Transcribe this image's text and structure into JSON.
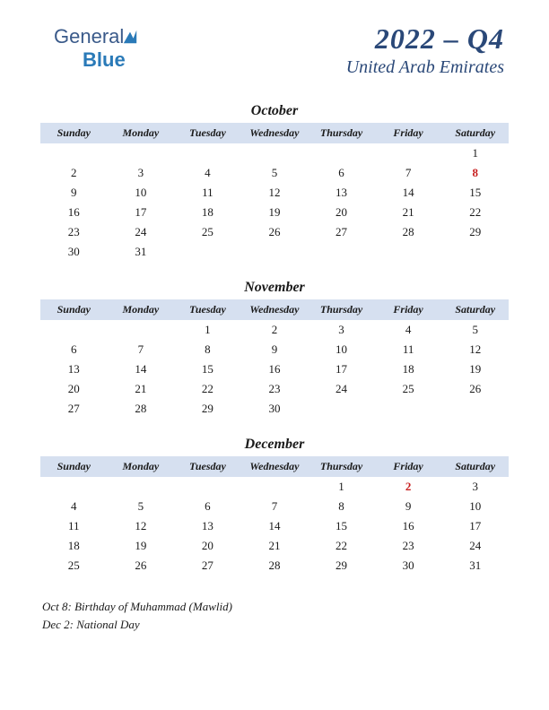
{
  "logo": {
    "part1": "General",
    "part2": "Blue"
  },
  "header": {
    "title": "2022 – Q4",
    "subtitle": "United Arab Emirates"
  },
  "dayNames": [
    "Sunday",
    "Monday",
    "Tuesday",
    "Wednesday",
    "Thursday",
    "Friday",
    "Saturday"
  ],
  "colors": {
    "header_bg": "#d6e0f0",
    "title_color": "#2a4878",
    "text_color": "#1a1a1a",
    "holiday_color": "#c82020",
    "page_bg": "#ffffff"
  },
  "months": [
    {
      "name": "October",
      "weeks": [
        [
          "",
          "",
          "",
          "",
          "",
          "",
          "1"
        ],
        [
          "2",
          "3",
          "4",
          "5",
          "6",
          "7",
          "8"
        ],
        [
          "9",
          "10",
          "11",
          "12",
          "13",
          "14",
          "15"
        ],
        [
          "16",
          "17",
          "18",
          "19",
          "20",
          "21",
          "22"
        ],
        [
          "23",
          "24",
          "25",
          "26",
          "27",
          "28",
          "29"
        ],
        [
          "30",
          "31",
          "",
          "",
          "",
          "",
          ""
        ]
      ],
      "holidays": [
        "8"
      ]
    },
    {
      "name": "November",
      "weeks": [
        [
          "",
          "",
          "1",
          "2",
          "3",
          "4",
          "5"
        ],
        [
          "6",
          "7",
          "8",
          "9",
          "10",
          "11",
          "12"
        ],
        [
          "13",
          "14",
          "15",
          "16",
          "17",
          "18",
          "19"
        ],
        [
          "20",
          "21",
          "22",
          "23",
          "24",
          "25",
          "26"
        ],
        [
          "27",
          "28",
          "29",
          "30",
          "",
          "",
          ""
        ]
      ],
      "holidays": []
    },
    {
      "name": "December",
      "weeks": [
        [
          "",
          "",
          "",
          "",
          "1",
          "2",
          "3"
        ],
        [
          "4",
          "5",
          "6",
          "7",
          "8",
          "9",
          "10"
        ],
        [
          "11",
          "12",
          "13",
          "14",
          "15",
          "16",
          "17"
        ],
        [
          "18",
          "19",
          "20",
          "21",
          "22",
          "23",
          "24"
        ],
        [
          "25",
          "26",
          "27",
          "28",
          "29",
          "30",
          "31"
        ]
      ],
      "holidays": [
        "2"
      ]
    }
  ],
  "footnotes": [
    "Oct 8: Birthday of Muhammad (Mawlid)",
    "Dec 2: National Day"
  ]
}
